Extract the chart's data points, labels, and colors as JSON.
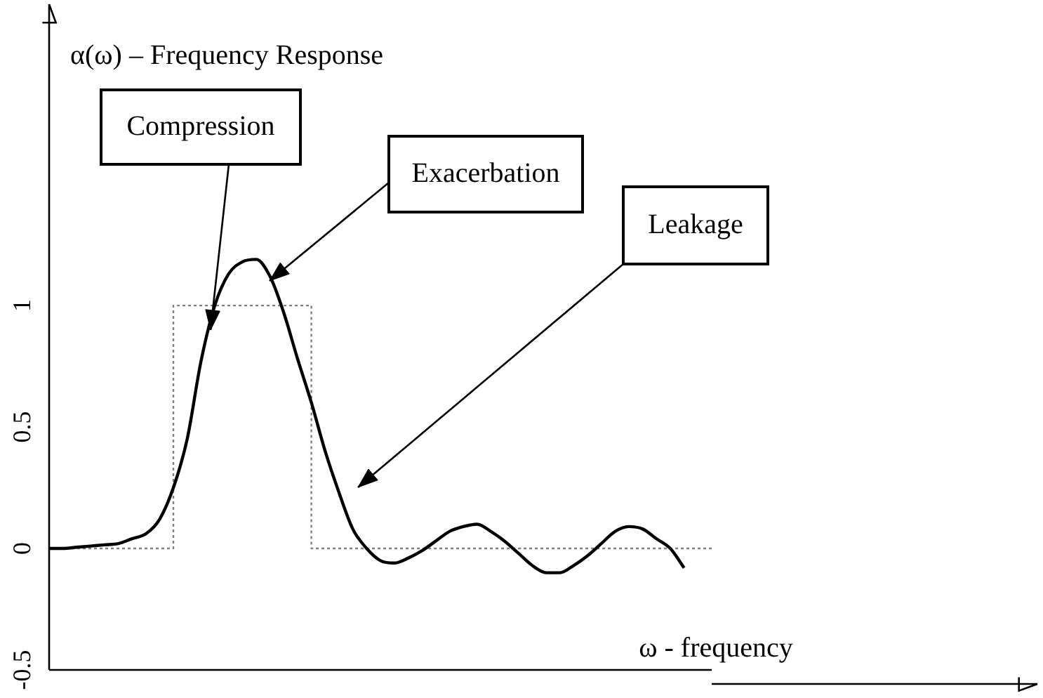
{
  "chart_data": {
    "type": "line",
    "ylabel": "α(ω) – Frequency Response",
    "xlabel": "ω - frequency",
    "categories": [
      null,
      null,
      null,
      null,
      null,
      null,
      null,
      null,
      null,
      null,
      null,
      null,
      null,
      null,
      null,
      null,
      null,
      null,
      null,
      null,
      null,
      null,
      null,
      null,
      null,
      null,
      null,
      null,
      null,
      null,
      null,
      null,
      null,
      null,
      null,
      null,
      null,
      null,
      null,
      null,
      null,
      null,
      null,
      null,
      null,
      null,
      null,
      null,
      null
    ],
    "series": [
      {
        "type": "line",
        "color": "#000000",
        "line_style": "solid",
        "values": [
          0,
          0,
          0.005,
          0.01,
          0.015,
          0.02,
          0.04,
          0.06,
          0.12,
          0.25,
          0.45,
          0.77,
          1.0,
          1.13,
          1.18,
          1.19,
          1.12,
          0.97,
          0.78,
          0.6,
          0.4,
          0.23,
          0.08,
          0,
          -0.05,
          -0.06,
          -0.04,
          -0.01,
          0.03,
          0.07,
          0.09,
          0.1,
          0.07,
          0.03,
          -0.02,
          -0.07,
          -0.1,
          -0.1,
          -0.07,
          -0.03,
          0.02,
          0.07,
          0.09,
          0.08,
          0.04,
          0,
          -0.08,
          null,
          null
        ]
      },
      {
        "type": "step",
        "color": "#808080",
        "line_style": "dotted",
        "values": [
          0,
          0,
          0,
          0,
          0,
          0,
          0,
          0,
          0,
          0,
          1,
          1,
          1,
          1,
          1,
          1,
          1,
          1,
          1,
          1,
          0,
          0,
          0,
          0,
          0,
          0,
          0,
          0,
          0,
          0,
          0,
          0,
          0,
          0,
          0,
          0,
          0,
          0,
          0,
          0,
          0,
          0,
          0,
          0,
          0,
          0,
          0,
          0,
          0
        ]
      }
    ],
    "ylim": [
      -0.5,
      2.2
    ],
    "yticks": [
      -0.5,
      0,
      0.5,
      1
    ],
    "grid": false,
    "legend": false,
    "marker": "none",
    "tick_labels": "y",
    "annotations": [
      "Compression",
      "Exacerbation",
      "Leakage"
    ]
  }
}
